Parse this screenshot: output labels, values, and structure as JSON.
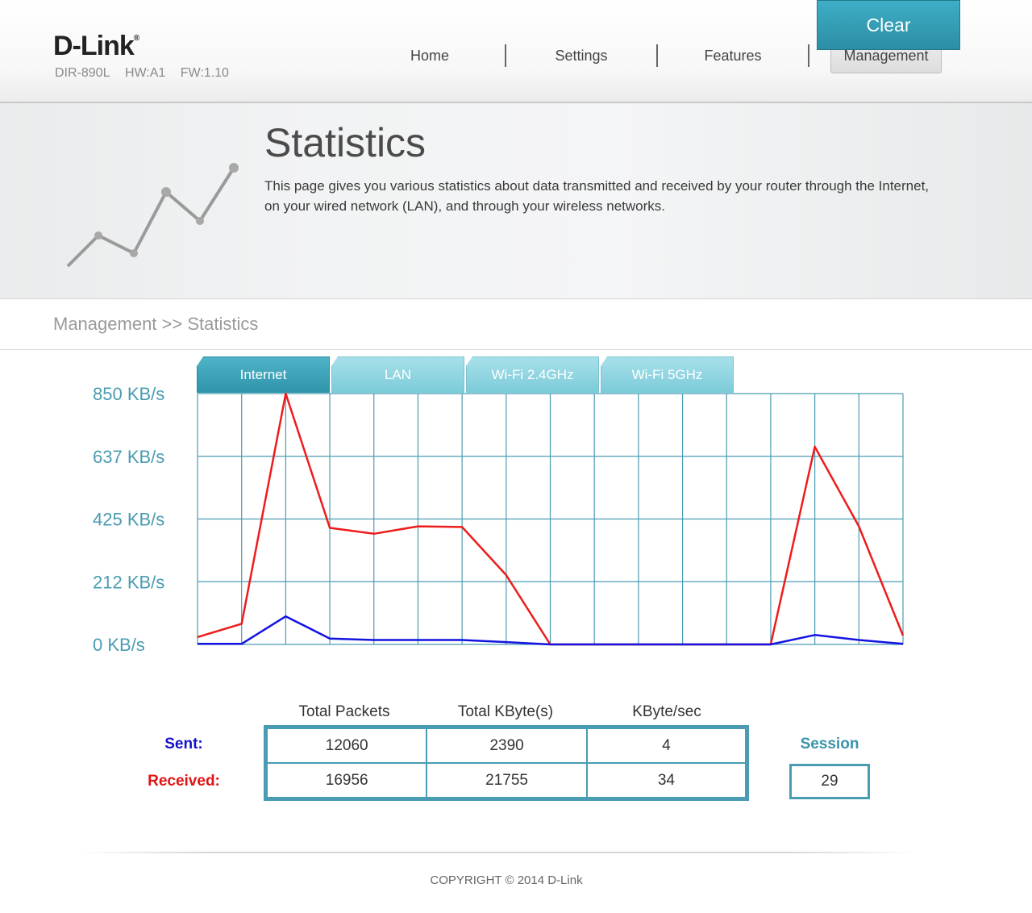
{
  "header": {
    "logo": "D-Link",
    "logo_mark": "®",
    "model": "DIR-890L",
    "hw": "HW:A1",
    "fw": "FW:1.10",
    "nav": [
      "Home",
      "Settings",
      "Features",
      "Management"
    ],
    "active_nav": "Management"
  },
  "banner": {
    "title": "Statistics",
    "description": "This page gives you various statistics about data transmitted and received by your router through the Internet, on your wired network (LAN), and through your wireless networks."
  },
  "breadcrumb": "Management >> Statistics",
  "clear_button": "Clear",
  "tabs": [
    "Internet",
    "LAN",
    "Wi-Fi 2.4GHz",
    "Wi-Fi 5GHz"
  ],
  "active_tab": "Internet",
  "chart_data": {
    "type": "line",
    "y_tick_labels": [
      "850 KB/s",
      "637 KB/s",
      "425 KB/s",
      "212 KB/s",
      "0 KB/s"
    ],
    "ylim": [
      0,
      850
    ],
    "x_count": 17,
    "series": [
      {
        "color": "#ee1c1c",
        "values": [
          25,
          70,
          850,
          395,
          375,
          400,
          398,
          235,
          0,
          0,
          0,
          0,
          0,
          0,
          670,
          400,
          30
        ]
      },
      {
        "color": "#1414e0",
        "values": [
          2,
          2,
          95,
          20,
          15,
          15,
          15,
          8,
          0,
          0,
          0,
          0,
          0,
          0,
          32,
          15,
          2
        ]
      }
    ]
  },
  "stats": {
    "headers": [
      "Total Packets",
      "Total KByte(s)",
      "KByte/sec"
    ],
    "sent_label": "Sent:",
    "received_label": "Received:",
    "sent": [
      "12060",
      "2390",
      "4"
    ],
    "received": [
      "16956",
      "21755",
      "34"
    ],
    "session_label": "Session",
    "session_value": "29"
  },
  "footer": "COPYRIGHT © 2014 D-Link",
  "colors": {
    "accent": "#2b8ea5",
    "grid": "#4a9cb2",
    "sent": "#1414c8",
    "received": "#e01414"
  }
}
